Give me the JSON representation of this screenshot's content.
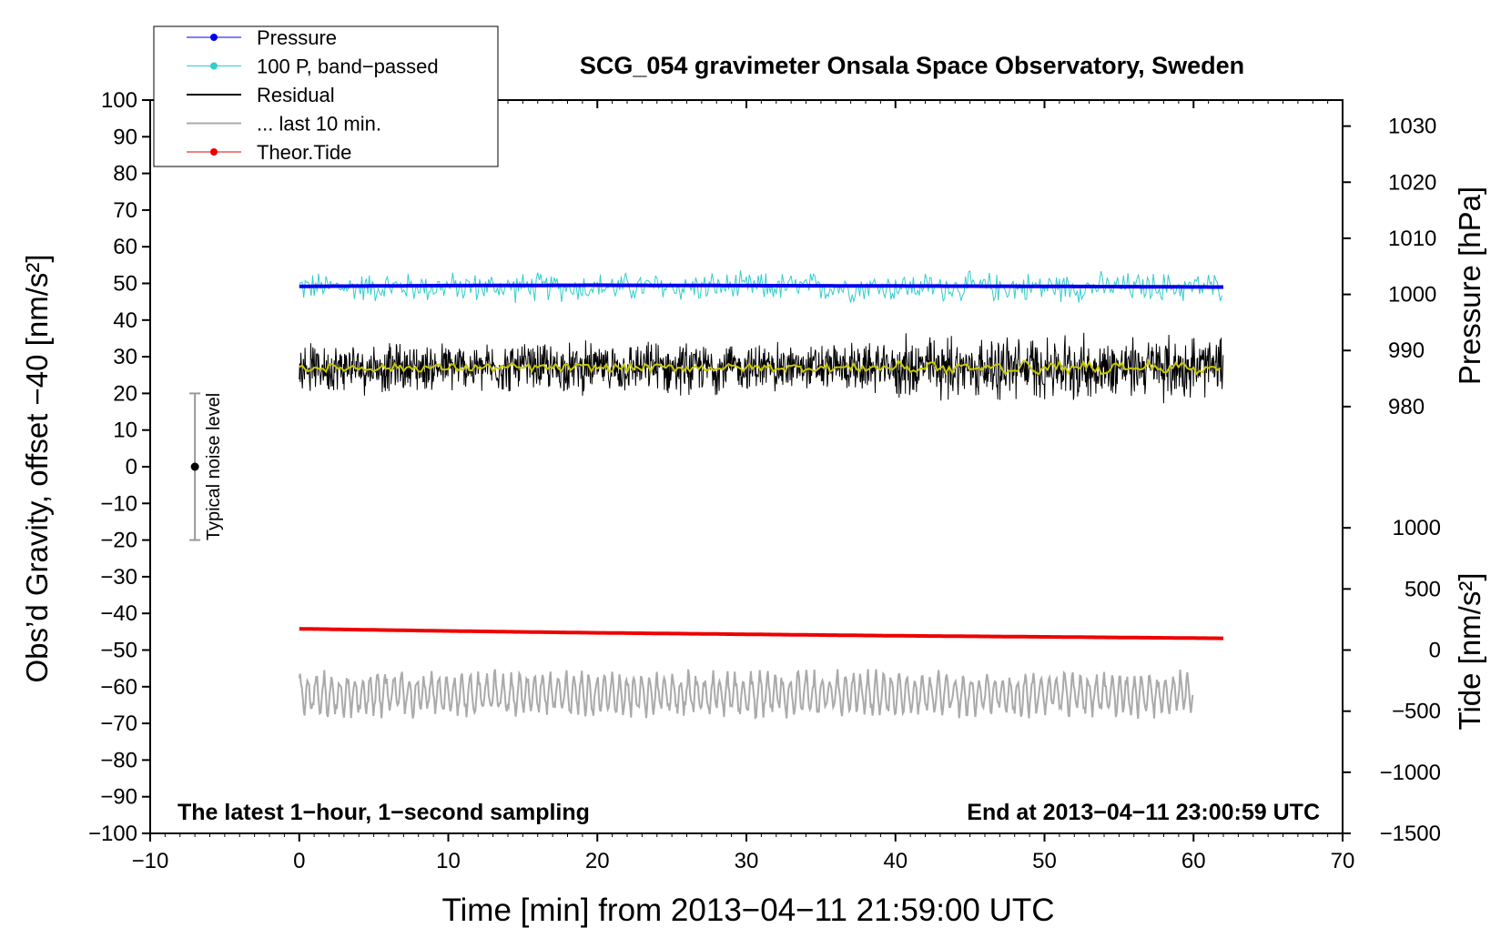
{
  "chart_data": {
    "type": "line",
    "title": "SCG_054 gravimeter Onsala Space Observatory, Sweden",
    "xlabel": "Time [min] from 2013−04−11 21:59:00 UTC",
    "ylabel": "Obs’d Gravity, offset −40 [nm/s²]",
    "ylabel_right_top": "Pressure [hPa]",
    "ylabel_right_bottom": "Tide [nm/s²]",
    "xlim": [
      -10,
      70
    ],
    "ylim": [
      -100,
      100
    ],
    "x_ticks": [
      "−10",
      "0",
      "10",
      "20",
      "30",
      "40",
      "50",
      "60",
      "70"
    ],
    "y_ticks": [
      "100",
      "90",
      "80",
      "70",
      "60",
      "50",
      "40",
      "30",
      "20",
      "10",
      "0",
      "−10",
      "−20",
      "−30",
      "−40",
      "−50",
      "−60",
      "−70",
      "−80",
      "−90",
      "−100"
    ],
    "pressure_axis": {
      "ticks": [
        "1030",
        "1020",
        "1010",
        "1000",
        "990",
        "980"
      ],
      "values": [
        1030,
        1020,
        1010,
        1000,
        990,
        980
      ],
      "gravity_equiv_at_1000": 47,
      "gravity_per_hpa": 1.53
    },
    "tide_axis": {
      "ticks": [
        "1000",
        "500",
        "0",
        "−500",
        "−1000",
        "−1500"
      ],
      "values": [
        1000,
        500,
        0,
        -500,
        -1000,
        -1500
      ],
      "gravity_equiv_at_0": -50,
      "gravity_per_unit": 0.03333
    },
    "legend_position": "top-left",
    "grid": false,
    "annotations": {
      "bottom_left": "The latest 1−hour, 1−second sampling",
      "bottom_right": "End at 2013−04−11 23:00:59 UTC",
      "noise_label": "Typical noise level"
    },
    "noise_bar": {
      "x": -7,
      "center": 0,
      "low": -20,
      "high": 20
    },
    "series": [
      {
        "name": "Pressure",
        "color": "#0000ee",
        "style": "line+dot",
        "x": [
          0,
          10,
          20,
          30,
          40,
          50,
          62
        ],
        "values": [
          49.2,
          49.4,
          49.5,
          49.4,
          49.3,
          49.2,
          49.0
        ]
      },
      {
        "name": "100 P, band−passed",
        "color": "#33cccc",
        "style": "line+dot",
        "x_range": [
          0,
          62
        ],
        "base": 49,
        "amplitude": 4
      },
      {
        "name": "Residual",
        "color": "#000000",
        "style": "line",
        "x_range": [
          0,
          62
        ],
        "base": 27,
        "amplitude": 6
      },
      {
        "name": "... last 10 min.",
        "color": "#aaaaaa",
        "style": "line",
        "x_range": [
          0,
          60
        ],
        "base": -62,
        "amplitude": 5
      },
      {
        "name": "Theor.Tide",
        "color": "#ee0000",
        "style": "line+dot",
        "x": [
          0,
          10,
          20,
          30,
          40,
          50,
          62
        ],
        "values": [
          -44.2,
          -44.8,
          -45.3,
          -45.7,
          -46.1,
          -46.4,
          -46.8
        ]
      }
    ],
    "smoothed_residual": {
      "color": "#c8c800",
      "base": 27
    }
  }
}
